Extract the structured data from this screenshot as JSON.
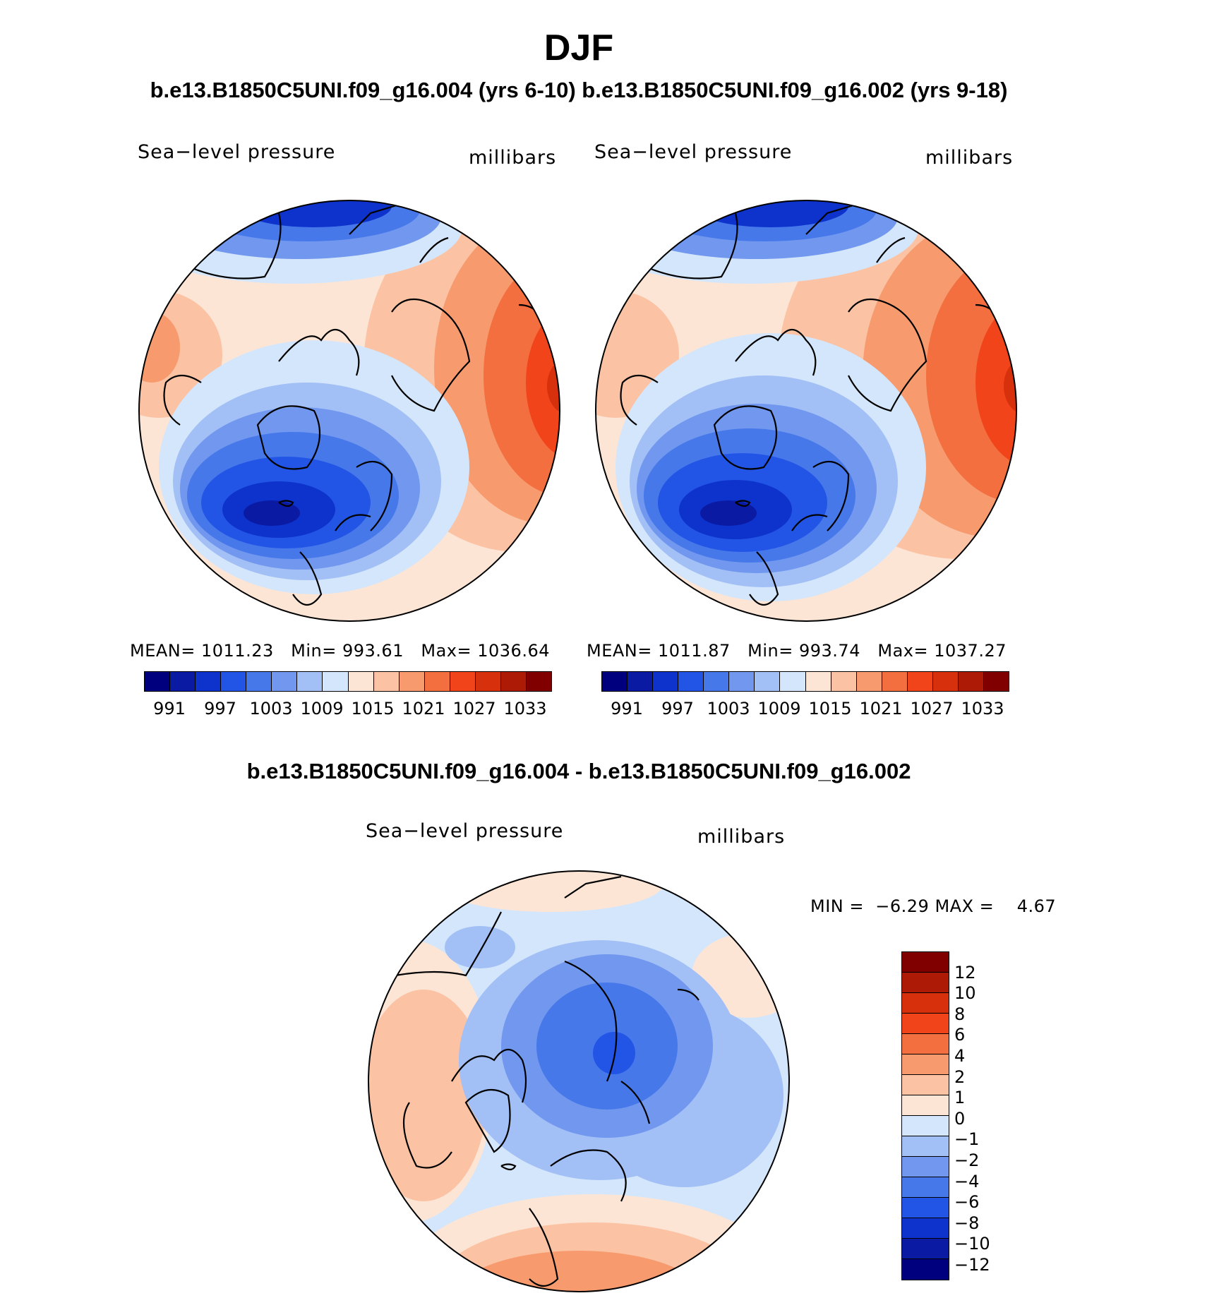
{
  "figure": {
    "season": "DJF",
    "subtitle": "b.e13.B1850C5UNI.f09_g16.004 (yrs 6-10) b.e13.B1850C5UNI.f09_g16.002 (yrs 9-18)",
    "diff_title": "b.e13.B1850C5UNI.f09_g16.004 - b.e13.B1850C5UNI.f09_g16.002"
  },
  "chart_data": [
    {
      "type": "heatmap",
      "projection": "north polar stereographic",
      "case": "b.e13.B1850C5UNI.f09_g16.004 (yrs 6-10)",
      "variable": "Sea−level pressure",
      "units": "millibars",
      "stats": {
        "mean_label": "MEAN=",
        "mean": "1011.23",
        "min_label": "Min=",
        "min": "993.61",
        "max_label": "Max=",
        "max": "1036.64"
      },
      "levels": [
        991,
        994,
        997,
        1000,
        1003,
        1006,
        1009,
        1012,
        1015,
        1018,
        1021,
        1024,
        1027,
        1030,
        1033
      ],
      "tick_labels": [
        "991",
        "997",
        "1003",
        "1009",
        "1015",
        "1021",
        "1027",
        "1033"
      ],
      "colors": [
        "#00007f",
        "#0a1aa3",
        "#0d33cc",
        "#2255e6",
        "#4678ea",
        "#7197ef",
        "#a2bff6",
        "#d3e6fb",
        "#fde5d6",
        "#fbc3a4",
        "#f79b6f",
        "#f46f40",
        "#f1441a",
        "#d6300d",
        "#ad1a06",
        "#800000"
      ]
    },
    {
      "type": "heatmap",
      "projection": "north polar stereographic",
      "case": "b.e13.B1850C5UNI.f09_g16.002 (yrs 9-18)",
      "variable": "Sea−level pressure",
      "units": "millibars",
      "stats": {
        "mean_label": "MEAN=",
        "mean": "1011.87",
        "min_label": "Min=",
        "min": "993.74",
        "max_label": "Max=",
        "max": "1037.27"
      },
      "levels": [
        991,
        994,
        997,
        1000,
        1003,
        1006,
        1009,
        1012,
        1015,
        1018,
        1021,
        1024,
        1027,
        1030,
        1033
      ],
      "tick_labels": [
        "991",
        "997",
        "1003",
        "1009",
        "1015",
        "1021",
        "1027",
        "1033"
      ],
      "colors": [
        "#00007f",
        "#0a1aa3",
        "#0d33cc",
        "#2255e6",
        "#4678ea",
        "#7197ef",
        "#a2bff6",
        "#d3e6fb",
        "#fde5d6",
        "#fbc3a4",
        "#f79b6f",
        "#f46f40",
        "#f1441a",
        "#d6300d",
        "#ad1a06",
        "#800000"
      ]
    },
    {
      "type": "heatmap",
      "projection": "north polar stereographic",
      "case": "b.e13.B1850C5UNI.f09_g16.004 - b.e13.B1850C5UNI.f09_g16.002",
      "variable": "Sea−level pressure",
      "units": "millibars",
      "stats": {
        "min_label": "MIN =",
        "min": "−6.29",
        "max_label": "MAX =",
        "max": "4.67"
      },
      "levels": [
        -12,
        -10,
        -8,
        -6,
        -4,
        -2,
        -1,
        0,
        1,
        2,
        4,
        6,
        8,
        10,
        12
      ],
      "tick_labels": [
        "12",
        "10",
        "8",
        "6",
        "4",
        "2",
        "1",
        "0",
        "−1",
        "−2",
        "−4",
        "−6",
        "−8",
        "−10",
        "−12"
      ],
      "colors_top_to_bottom": [
        "#800000",
        "#ad1a06",
        "#d6300d",
        "#f1441a",
        "#f46f40",
        "#f79b6f",
        "#fbc3a4",
        "#fde5d6",
        "#d3e6fb",
        "#a2bff6",
        "#7197ef",
        "#4678ea",
        "#2255e6",
        "#0d33cc",
        "#0a1aa3",
        "#00007f"
      ]
    }
  ]
}
